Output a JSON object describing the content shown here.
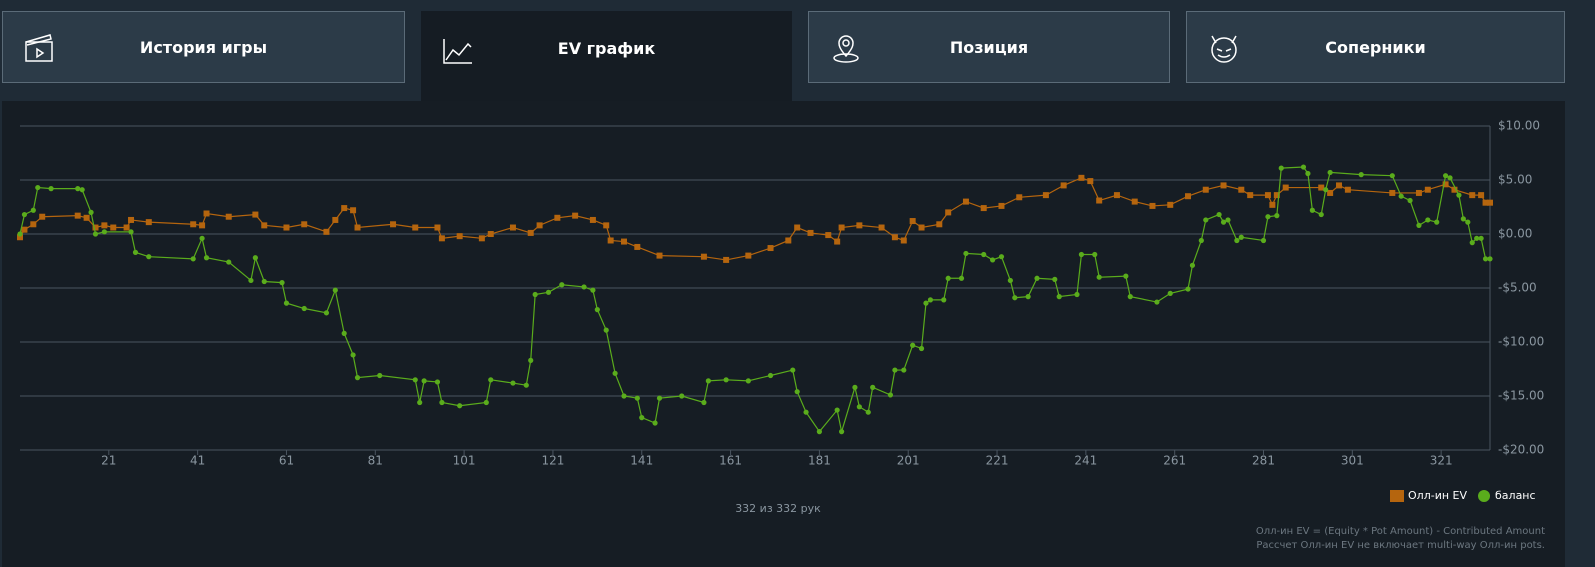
{
  "tabs": [
    "История игры",
    "EV график",
    "Позиция",
    "Соперники"
  ],
  "chart_data": {
    "type": "line",
    "xlim": [
      1,
      332
    ],
    "ylim": [
      -20,
      10
    ],
    "xticks": [
      21,
      41,
      61,
      81,
      101,
      121,
      141,
      161,
      181,
      201,
      221,
      241,
      261,
      281,
      301,
      321
    ],
    "yticks": [
      {
        "value": 10,
        "label": "$10.00"
      },
      {
        "value": 5,
        "label": "$5.00"
      },
      {
        "value": 0,
        "label": "$0.00"
      },
      {
        "value": -5,
        "label": "-$5.00"
      },
      {
        "value": -10,
        "label": "-$10.00"
      },
      {
        "value": -15,
        "label": "-$15.00"
      },
      {
        "value": -20,
        "label": "-$20.00"
      }
    ],
    "grid": true,
    "series": [
      {
        "name": "Олл-ин EV",
        "color": "#b5650e",
        "marker": "square",
        "x": [
          1,
          2,
          4,
          6,
          14,
          16,
          18,
          20,
          22,
          25,
          26,
          30,
          40,
          42,
          43,
          48,
          54,
          56,
          61,
          65,
          70,
          72,
          74,
          76,
          77,
          85,
          90,
          95,
          96,
          100,
          105,
          107,
          112,
          116,
          118,
          122,
          126,
          130,
          133,
          134,
          137,
          140,
          145,
          155,
          160,
          165,
          170,
          174,
          176,
          179,
          183,
          185,
          186,
          190,
          195,
          198,
          200,
          202,
          204,
          208,
          210,
          214,
          218,
          222,
          226,
          232,
          236,
          240,
          242,
          244,
          248,
          252,
          256,
          260,
          264,
          268,
          272,
          276,
          278,
          282,
          283,
          284,
          286,
          294,
          296,
          298,
          300,
          310,
          316,
          318,
          322,
          324,
          328,
          330,
          331,
          332
        ],
        "values": [
          -0.3,
          0.4,
          0.9,
          1.6,
          1.7,
          1.5,
          0.6,
          0.8,
          0.6,
          0.6,
          1.3,
          1.1,
          0.9,
          0.8,
          1.9,
          1.6,
          1.8,
          0.8,
          0.6,
          0.9,
          0.2,
          1.3,
          2.4,
          2.2,
          0.6,
          0.9,
          0.6,
          0.6,
          -0.4,
          -0.2,
          -0.4,
          0,
          0.6,
          0.1,
          0.8,
          1.5,
          1.7,
          1.3,
          0.8,
          -0.6,
          -0.7,
          -1.2,
          -2.0,
          -2.1,
          -2.4,
          -2.0,
          -1.3,
          -0.6,
          0.6,
          0.1,
          -0.1,
          -0.7,
          0.6,
          0.8,
          0.6,
          -0.3,
          -0.6,
          1.2,
          0.6,
          0.9,
          2.0,
          3.0,
          2.4,
          2.6,
          3.4,
          3.6,
          4.5,
          5.2,
          4.9,
          3.1,
          3.6,
          3.0,
          2.6,
          2.7,
          3.5,
          4.1,
          4.5,
          4.1,
          3.6,
          3.6,
          2.7,
          3.6,
          4.3,
          4.3,
          3.8,
          4.5,
          4.1,
          3.8,
          3.8,
          4.1,
          4.6,
          4.1,
          3.6,
          3.6,
          2.9,
          2.9
        ]
      },
      {
        "name": "баланс",
        "color": "#5aac1c",
        "marker": "circle",
        "x": [
          1,
          2,
          4,
          5,
          8,
          14,
          15,
          17,
          18,
          20,
          26,
          27,
          30,
          40,
          42,
          43,
          48,
          53,
          54,
          56,
          60,
          61,
          65,
          70,
          72,
          74,
          76,
          77,
          82,
          90,
          91,
          92,
          95,
          96,
          100,
          106,
          107,
          112,
          115,
          116,
          117,
          120,
          123,
          128,
          130,
          131,
          133,
          135,
          137,
          140,
          141,
          144,
          145,
          150,
          155,
          156,
          160,
          165,
          170,
          175,
          176,
          178,
          181,
          185,
          186,
          189,
          190,
          192,
          193,
          197,
          198,
          200,
          202,
          204,
          205,
          206,
          209,
          210,
          213,
          214,
          218,
          220,
          222,
          224,
          225,
          228,
          230,
          234,
          235,
          239,
          240,
          243,
          244,
          250,
          251,
          257,
          260,
          264,
          265,
          267,
          268,
          271,
          272,
          273,
          275,
          276,
          281,
          282,
          284,
          285,
          290,
          291,
          292,
          294,
          295,
          296,
          303,
          310,
          312,
          314,
          316,
          318,
          320,
          322,
          323,
          325,
          326,
          327,
          328,
          329,
          330,
          331,
          332
        ],
        "values": [
          0,
          1.8,
          2.2,
          4.3,
          4.2,
          4.2,
          4.1,
          2.0,
          0,
          0.2,
          0.2,
          -1.7,
          -2.1,
          -2.3,
          -0.4,
          -2.2,
          -2.6,
          -4.3,
          -2.2,
          -4.4,
          -4.5,
          -6.4,
          -6.9,
          -7.3,
          -5.2,
          -9.2,
          -11.2,
          -13.3,
          -13.1,
          -13.5,
          -15.6,
          -13.6,
          -13.7,
          -15.6,
          -15.9,
          -15.6,
          -13.5,
          -13.8,
          -14.0,
          -11.7,
          -5.6,
          -5.4,
          -4.7,
          -4.9,
          -5.2,
          -7.0,
          -8.9,
          -12.9,
          -15.0,
          -15.2,
          -17.0,
          -17.5,
          -15.2,
          -15.0,
          -15.6,
          -13.6,
          -13.5,
          -13.6,
          -13.1,
          -12.6,
          -14.6,
          -16.5,
          -18.3,
          -16.3,
          -18.3,
          -14.2,
          -16.0,
          -16.5,
          -14.2,
          -14.9,
          -12.6,
          -12.6,
          -10.3,
          -10.6,
          -6.4,
          -6.1,
          -6.1,
          -4.1,
          -4.1,
          -1.8,
          -1.9,
          -2.4,
          -2.1,
          -4.3,
          -5.9,
          -5.8,
          -4.1,
          -4.2,
          -5.8,
          -5.6,
          -1.9,
          -1.9,
          -4.0,
          -3.9,
          -5.8,
          -6.3,
          -5.5,
          -5.1,
          -2.9,
          -0.6,
          1.3,
          1.8,
          1.1,
          1.3,
          -0.6,
          -0.3,
          -0.6,
          1.6,
          1.7,
          6.1,
          6.2,
          5.6,
          2.2,
          1.8,
          4.1,
          5.7,
          5.5,
          5.4,
          3.5,
          3.1,
          0.8,
          1.3,
          1.1,
          5.4,
          5.2,
          3.6,
          1.4,
          1.1,
          -0.8,
          -0.4,
          -0.4,
          -2.3,
          -2.3
        ]
      }
    ],
    "counter": "332 из 332 рук",
    "notes": [
      "Олл-ин EV = (Equity * Pot Amount) - Contributed Amount",
      "Рассчет Олл-ин EV не включает multi-way Олл-ин pots."
    ]
  }
}
